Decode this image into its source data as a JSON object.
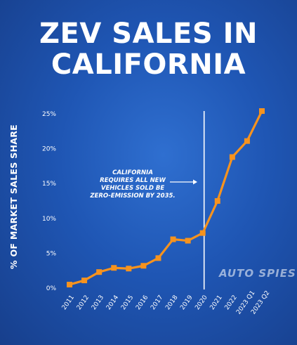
{
  "chart_data": {
    "type": "line",
    "title_lines": [
      "ZEV SALES IN",
      "CALIFORNIA"
    ],
    "ylabel": "% OF MARKET SALES SHARE",
    "xlabel": "",
    "ylim": [
      0,
      25
    ],
    "y_ticks": [
      "0%",
      "5%",
      "10%",
      "15%",
      "20%",
      "25%"
    ],
    "y_tick_values": [
      0,
      5,
      10,
      15,
      20,
      25
    ],
    "categories": [
      "2011",
      "2012",
      "2013",
      "2014",
      "2015",
      "2016",
      "2017",
      "2018",
      "2019",
      "2020",
      "2021",
      "2022",
      "2023 Q1",
      "2023 Q2"
    ],
    "series": [
      {
        "values": [
          0.5,
          1.1,
          2.3,
          2.9,
          2.8,
          3.2,
          4.3,
          7.0,
          6.8,
          7.9,
          12.5,
          18.8,
          21.1,
          25.4
        ],
        "color": "#f7931e"
      }
    ],
    "vline_category": "2020",
    "annotation_lines": [
      "CALIFORNIA",
      "REQUIRES ALL NEW",
      "VEHICLES SOLD BE",
      "ZERO-EMISSION BY 2035."
    ],
    "grid": false,
    "legend": "none"
  },
  "watermark": "AUTO SPIES",
  "colors": {
    "line": "#f7931e",
    "background": "#1f56b4",
    "text": "#ffffff"
  }
}
